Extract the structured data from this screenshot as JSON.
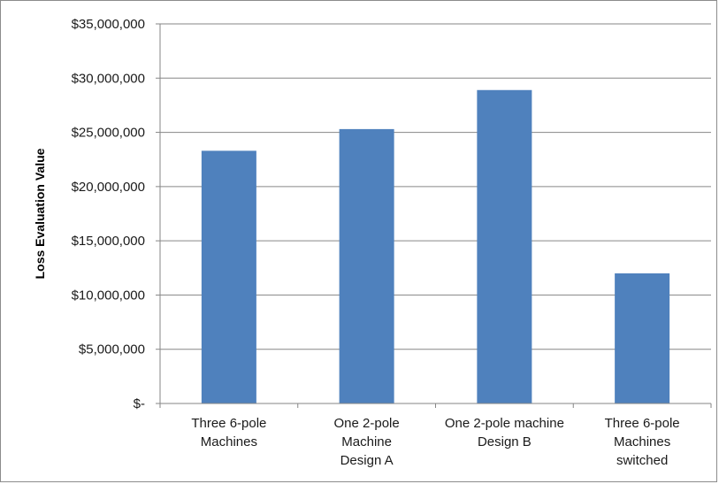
{
  "chart_data": {
    "type": "bar",
    "categories": [
      [
        "Three 6-pole",
        "Machines"
      ],
      [
        "One 2-pole",
        "Machine",
        "Design A"
      ],
      [
        "One 2-pole machine",
        "Design B"
      ],
      [
        "Three 6-pole",
        "Machines",
        "switched"
      ]
    ],
    "values": [
      23300000,
      25300000,
      28900000,
      12000000
    ],
    "ylabel": "Loss Evaluation Value",
    "xlabel": "",
    "title": "",
    "ylim": [
      0,
      35000000
    ],
    "yticks": [
      0,
      5000000,
      10000000,
      15000000,
      20000000,
      25000000,
      30000000,
      35000000
    ],
    "ytick_labels": [
      "$-",
      "$5,000,000",
      "$10,000,000",
      "$15,000,000",
      "$20,000,000",
      "$25,000,000",
      "$30,000,000",
      "$35,000,000"
    ],
    "grid": true,
    "legend": "none",
    "colors": {
      "bar": "#4f81bd",
      "grid": "#868686",
      "axis": "#868686"
    }
  }
}
